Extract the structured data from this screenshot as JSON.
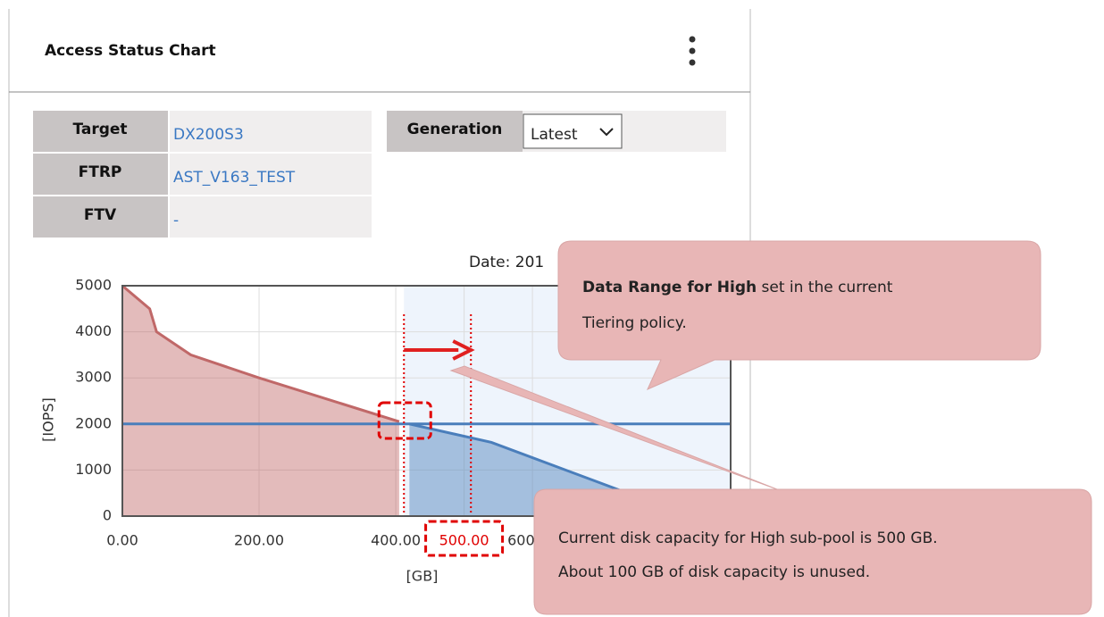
{
  "header": {
    "title": "Access Status Chart"
  },
  "info": {
    "rows": [
      [
        "Target",
        "DX200S3"
      ],
      [
        "FTRP",
        "AST_V163_TEST"
      ],
      [
        "FTV",
        "-"
      ]
    ],
    "generation_label": "Generation",
    "generation_value": "Latest"
  },
  "chart_data": {
    "type": "area",
    "date_label": "Date: 201",
    "xlabel": "[GB]",
    "ylabel": "[IOPS]",
    "xlim": [
      0,
      890
    ],
    "ylim": [
      0,
      5000
    ],
    "xticks": [
      {
        "value": 0,
        "label": "0.00"
      },
      {
        "value": 200,
        "label": "200.00"
      },
      {
        "value": 400,
        "label": "400.00"
      },
      {
        "value": 500,
        "label": "500.00",
        "color": "#e00000"
      },
      {
        "value": 600,
        "label": "600.00"
      }
    ],
    "yticks": [
      0,
      1000,
      2000,
      3000,
      4000,
      5000
    ],
    "grid": true,
    "series": [
      {
        "color": "#c06868",
        "x": [
          0,
          40,
          50,
          100,
          200,
          405
        ],
        "values": [
          5000,
          4500,
          4000,
          3500,
          3000,
          2050
        ]
      },
      {
        "color": "#4a7ebb",
        "x": [
          420,
          540,
          730
        ],
        "values": [
          2000,
          1600,
          550
        ]
      }
    ],
    "threshold": 2000,
    "range_lines": [
      412,
      510
    ]
  },
  "callouts": [
    {
      "bold": "Data Range for High",
      "lines": [
        " set in the current",
        "Tiering policy."
      ]
    },
    {
      "lines": [
        "Current disk capacity for High sub-pool is 500 GB.",
        "About 100 GB of disk capacity is unused."
      ]
    }
  ]
}
